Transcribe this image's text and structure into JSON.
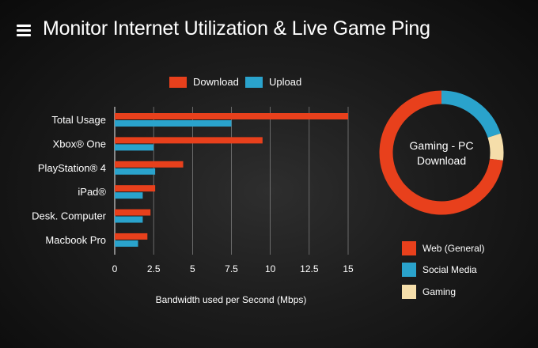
{
  "header": {
    "title": "Monitor Internet Utilization & Live Game Ping",
    "menu_icon": "hamburger-menu-icon"
  },
  "colors": {
    "download": "#e8401c",
    "upload": "#2aa3cc",
    "web": "#e8401c",
    "social": "#2aa3cc",
    "gaming": "#f5deaa",
    "grid": "#9a9a9a"
  },
  "chart_data": [
    {
      "type": "bar",
      "orientation": "horizontal",
      "categories": [
        "Total Usage",
        "Xbox® One",
        "PlayStation® 4",
        "iPad®",
        "Desk. Computer",
        "Macbook Pro"
      ],
      "series": [
        {
          "name": "Download",
          "values": [
            15,
            9.5,
            4.4,
            2.6,
            2.3,
            2.1
          ]
        },
        {
          "name": "Upload",
          "values": [
            7.5,
            2.5,
            2.6,
            1.8,
            1.8,
            1.5
          ]
        }
      ],
      "xlabel": "Bandwidth used per Second (Mbps)",
      "xlim": [
        0,
        15
      ],
      "xticks": [
        "0",
        "2.5",
        "5",
        "7.5",
        "10",
        "12.5",
        "15"
      ],
      "grid": true,
      "legend": "top-center"
    },
    {
      "type": "pie",
      "variant": "donut",
      "center_text": [
        "Gaming - PC",
        "Download"
      ],
      "labels": [
        "Web (General)",
        "Social Media",
        "Gaming"
      ],
      "values": [
        73,
        20,
        7
      ],
      "legend": "bottom-right"
    }
  ]
}
